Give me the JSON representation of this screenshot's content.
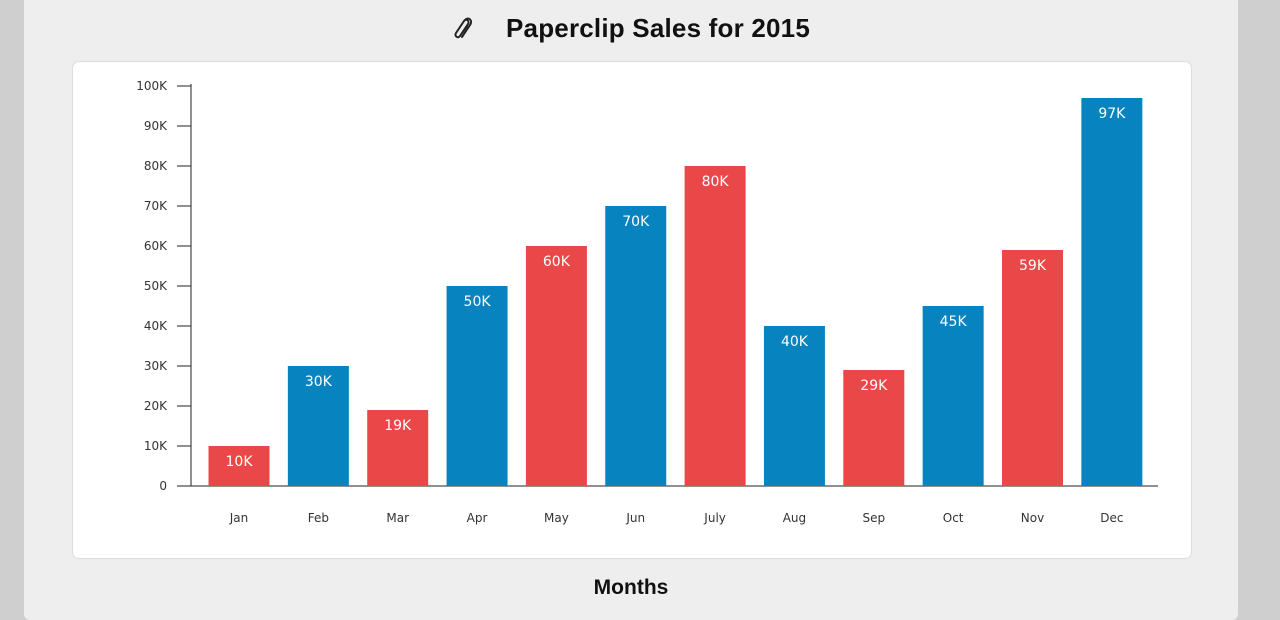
{
  "chart_data": {
    "type": "bar",
    "title": "Paperclip Sales for 2015",
    "xlabel": "Months",
    "ylabel": "",
    "categories": [
      "Jan",
      "Feb",
      "Mar",
      "Apr",
      "May",
      "Jun",
      "July",
      "Aug",
      "Sep",
      "Oct",
      "Nov",
      "Dec"
    ],
    "values": [
      10000,
      30000,
      19000,
      50000,
      60000,
      70000,
      80000,
      40000,
      29000,
      45000,
      59000,
      97000
    ],
    "value_labels": [
      "10K",
      "30K",
      "19K",
      "50K",
      "60K",
      "70K",
      "80K",
      "40K",
      "29K",
      "45K",
      "59K",
      "97K"
    ],
    "y_ticks": [
      0,
      10000,
      20000,
      30000,
      40000,
      50000,
      60000,
      70000,
      80000,
      90000,
      100000
    ],
    "y_tick_labels": [
      "0",
      "10K",
      "20K",
      "30K",
      "40K",
      "50K",
      "60K",
      "70K",
      "80K",
      "90K",
      "100K"
    ],
    "ylim": [
      0,
      100000
    ],
    "grid": false,
    "legend": "none",
    "bar_colors": [
      "#ea4848",
      "#0784bf",
      "#ea4848",
      "#0784bf",
      "#ea4848",
      "#0784bf",
      "#ea4848",
      "#0784bf",
      "#ea4848",
      "#0784bf",
      "#ea4848",
      "#0784bf"
    ]
  },
  "icons": {
    "title_icon": "paperclip-icon"
  }
}
